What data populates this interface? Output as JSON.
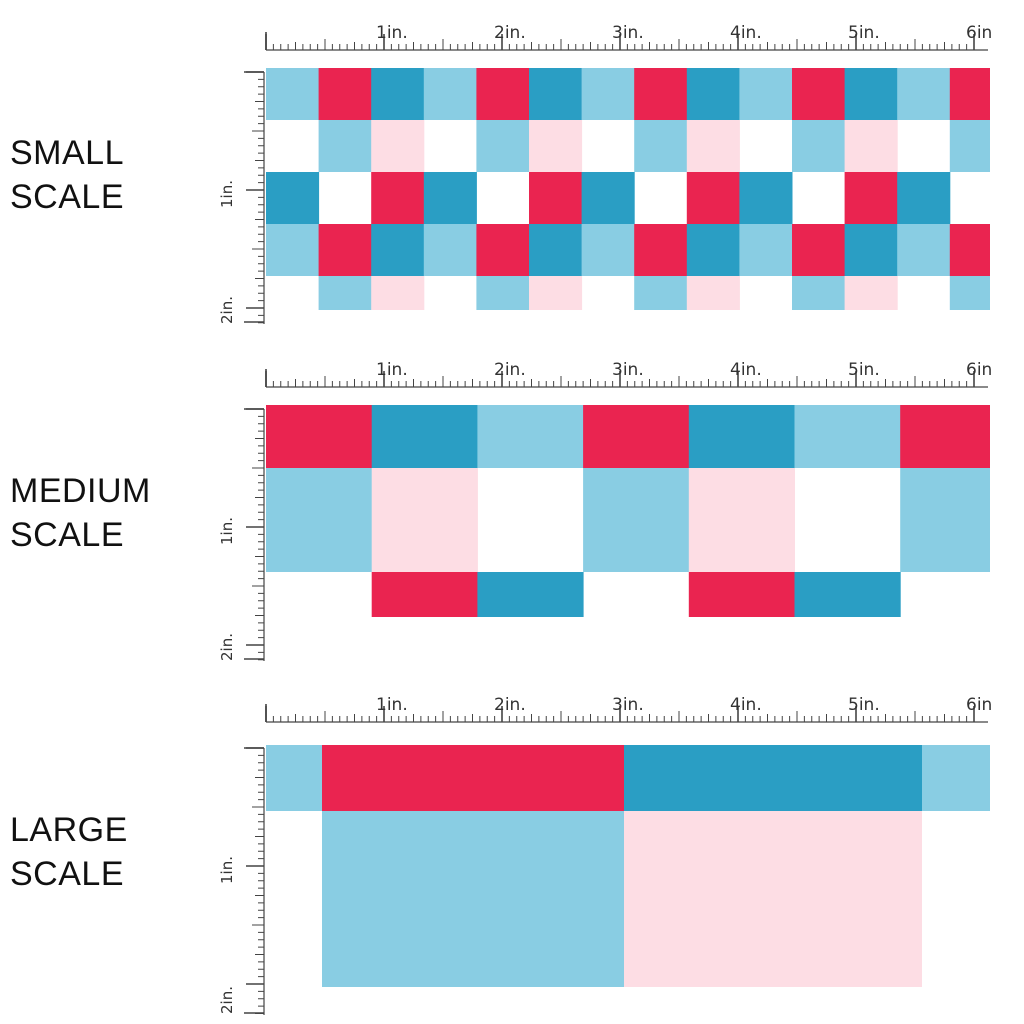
{
  "colors": {
    "red": "#EA2450",
    "teal": "#2A9EC4",
    "sky": "#89CDE3",
    "pink": "#FDDDE4",
    "white": "#FFFFFF",
    "ruler": "#444444"
  },
  "ruler": {
    "h_labels": [
      "1in.",
      "2in.",
      "3in.",
      "4in.",
      "5in.",
      "6in."
    ],
    "v_labels": [
      "1in.",
      "2in."
    ]
  },
  "panels": [
    {
      "id": "small",
      "label_line1": "SMALL",
      "label_line2": "SCALE"
    },
    {
      "id": "medium",
      "label_line1": "MEDIUM",
      "label_line2": "SCALE"
    },
    {
      "id": "large",
      "label_line1": "LARGE",
      "label_line2": "SCALE"
    }
  ]
}
